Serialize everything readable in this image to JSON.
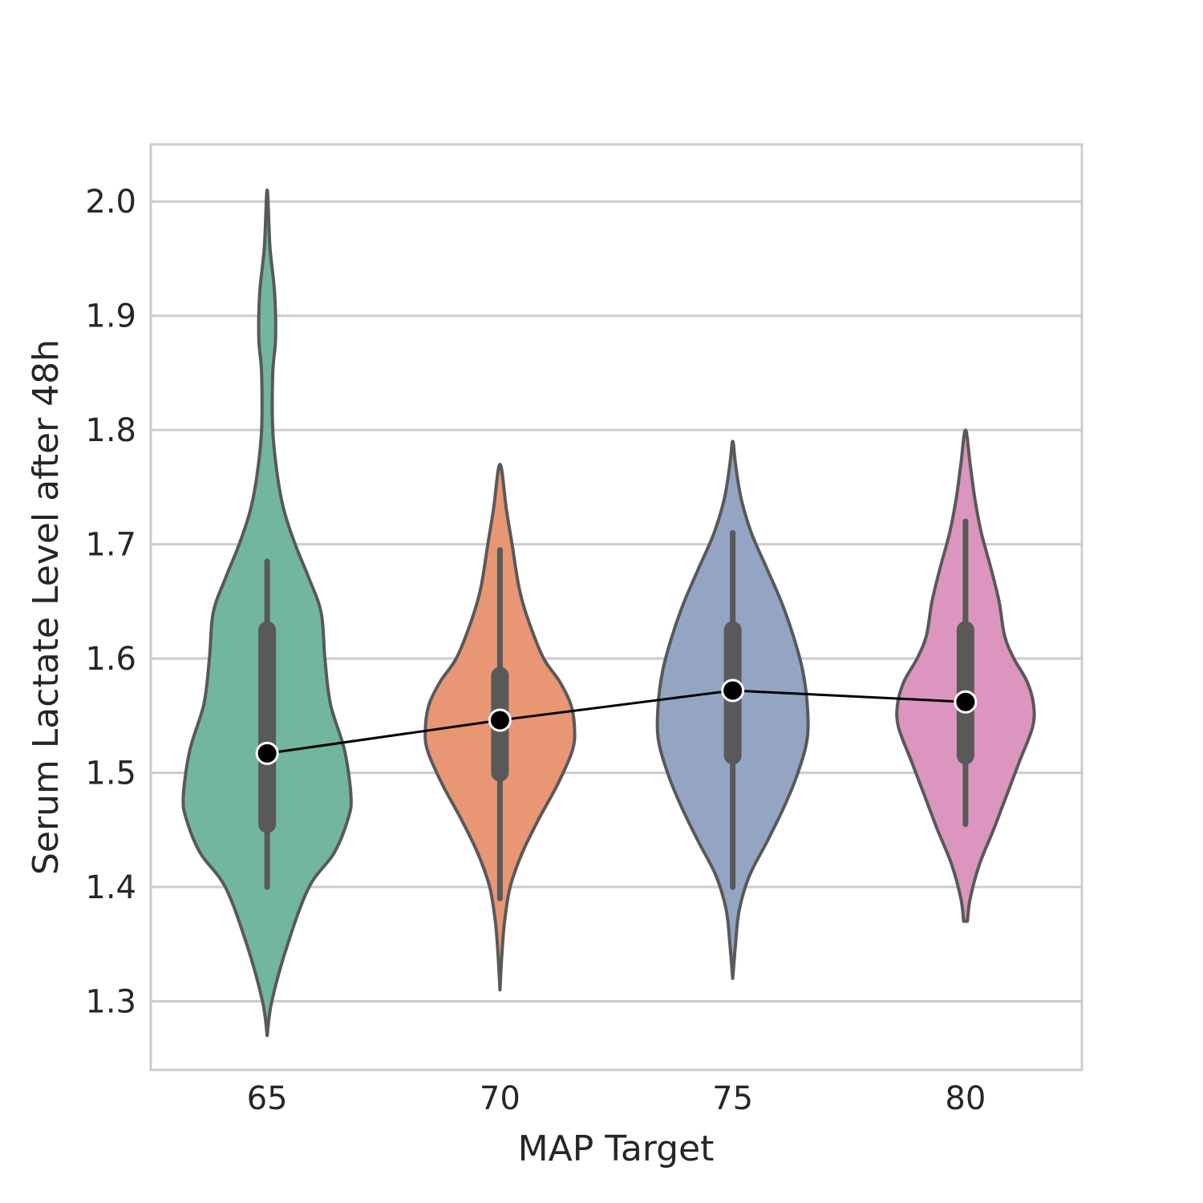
{
  "chart_data": {
    "type": "violin",
    "xlabel": "MAP Target",
    "ylabel": "Serum Lactate Level after 48h",
    "ylim": [
      1.24,
      2.05
    ],
    "yticks": [
      "1.3",
      "1.4",
      "1.5",
      "1.6",
      "1.7",
      "1.8",
      "1.9",
      "2.0"
    ],
    "grid": "horizontal",
    "categories": [
      "65",
      "70",
      "75",
      "80"
    ],
    "groups": [
      {
        "category": "65",
        "color": "#72b6a1",
        "min": 1.27,
        "max": 2.01,
        "whisker_low": 1.4,
        "whisker_high": 1.685,
        "q1": 1.455,
        "q3": 1.625,
        "mean": 1.517,
        "density": [
          [
            1.27,
            0.0
          ],
          [
            1.3,
            0.05
          ],
          [
            1.35,
            0.22
          ],
          [
            1.4,
            0.45
          ],
          [
            1.43,
            0.72
          ],
          [
            1.46,
            0.87
          ],
          [
            1.48,
            0.9
          ],
          [
            1.52,
            0.83
          ],
          [
            1.56,
            0.68
          ],
          [
            1.6,
            0.62
          ],
          [
            1.64,
            0.58
          ],
          [
            1.67,
            0.45
          ],
          [
            1.7,
            0.3
          ],
          [
            1.73,
            0.18
          ],
          [
            1.76,
            0.11
          ],
          [
            1.8,
            0.06
          ],
          [
            1.85,
            0.06
          ],
          [
            1.88,
            0.09
          ],
          [
            1.92,
            0.08
          ],
          [
            1.96,
            0.03
          ],
          [
            2.01,
            0.0
          ]
        ]
      },
      {
        "category": "70",
        "color": "#e99675",
        "min": 1.31,
        "max": 1.77,
        "whisker_low": 1.39,
        "whisker_high": 1.695,
        "q1": 1.5,
        "q3": 1.585,
        "mean": 1.546,
        "density": [
          [
            1.31,
            0.0
          ],
          [
            1.34,
            0.02
          ],
          [
            1.37,
            0.05
          ],
          [
            1.4,
            0.11
          ],
          [
            1.43,
            0.24
          ],
          [
            1.46,
            0.42
          ],
          [
            1.49,
            0.62
          ],
          [
            1.52,
            0.78
          ],
          [
            1.54,
            0.8
          ],
          [
            1.56,
            0.76
          ],
          [
            1.58,
            0.64
          ],
          [
            1.6,
            0.47
          ],
          [
            1.63,
            0.32
          ],
          [
            1.66,
            0.21
          ],
          [
            1.7,
            0.13
          ],
          [
            1.73,
            0.07
          ],
          [
            1.77,
            0.0
          ]
        ]
      },
      {
        "category": "75",
        "color": "#94a5c4",
        "min": 1.32,
        "max": 1.79,
        "whisker_low": 1.4,
        "whisker_high": 1.71,
        "q1": 1.515,
        "q3": 1.625,
        "mean": 1.572,
        "density": [
          [
            1.32,
            0.0
          ],
          [
            1.35,
            0.03
          ],
          [
            1.38,
            0.07
          ],
          [
            1.41,
            0.18
          ],
          [
            1.44,
            0.37
          ],
          [
            1.47,
            0.55
          ],
          [
            1.5,
            0.7
          ],
          [
            1.53,
            0.8
          ],
          [
            1.56,
            0.8
          ],
          [
            1.59,
            0.75
          ],
          [
            1.62,
            0.65
          ],
          [
            1.65,
            0.52
          ],
          [
            1.68,
            0.36
          ],
          [
            1.71,
            0.2
          ],
          [
            1.74,
            0.09
          ],
          [
            1.77,
            0.03
          ],
          [
            1.79,
            0.0
          ]
        ]
      },
      {
        "category": "80",
        "color": "#db95bf",
        "min": 1.37,
        "max": 1.8,
        "whisker_low": 1.455,
        "whisker_high": 1.72,
        "q1": 1.515,
        "q3": 1.625,
        "mean": 1.562,
        "density": [
          [
            1.37,
            0.02
          ],
          [
            1.39,
            0.05
          ],
          [
            1.42,
            0.15
          ],
          [
            1.45,
            0.3
          ],
          [
            1.48,
            0.44
          ],
          [
            1.51,
            0.58
          ],
          [
            1.54,
            0.72
          ],
          [
            1.56,
            0.73
          ],
          [
            1.58,
            0.66
          ],
          [
            1.6,
            0.52
          ],
          [
            1.62,
            0.42
          ],
          [
            1.65,
            0.36
          ],
          [
            1.68,
            0.27
          ],
          [
            1.71,
            0.17
          ],
          [
            1.74,
            0.1
          ],
          [
            1.77,
            0.05
          ],
          [
            1.8,
            0.0
          ]
        ]
      }
    ],
    "mean_line": {
      "color": "#000000",
      "values": [
        1.517,
        1.546,
        1.572,
        1.562
      ]
    }
  }
}
